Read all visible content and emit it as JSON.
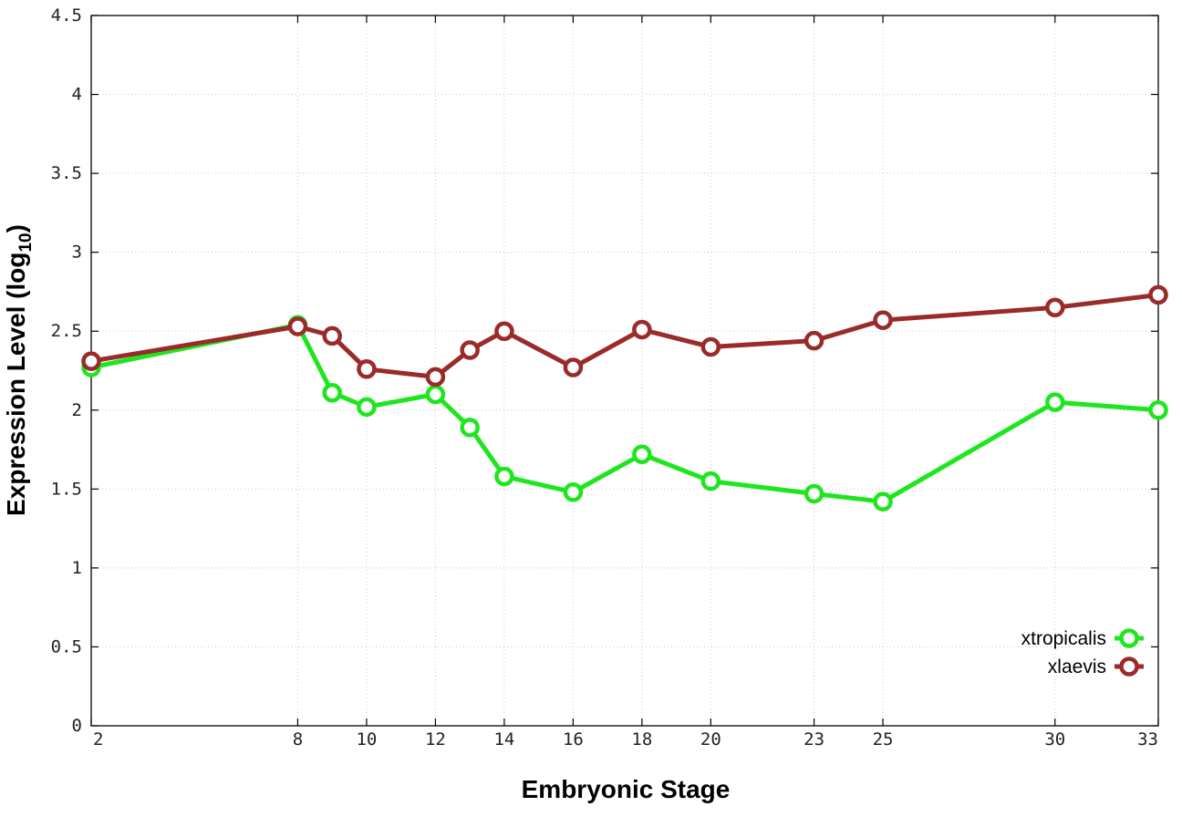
{
  "chart_data": {
    "type": "line",
    "xlabel": "Embryonic Stage",
    "ylabel": "Expression Level (log",
    "ylabel_subscript": "10",
    "ylabel_close": ")",
    "x": [
      2,
      8,
      9,
      10,
      12,
      13,
      14,
      16,
      18,
      20,
      23,
      25,
      30,
      33
    ],
    "xticks": [
      2,
      8,
      10,
      12,
      14,
      16,
      18,
      20,
      23,
      25,
      30,
      33
    ],
    "xlim": [
      2,
      33
    ],
    "ylim": [
      0,
      4.5
    ],
    "yticks": [
      "0",
      "0.5",
      "1",
      "1.5",
      "2",
      "2.5",
      "3",
      "3.5",
      "4",
      "4.5"
    ],
    "grid": true,
    "legend_position": "bottom-right",
    "series": [
      {
        "name": "xtropicalis",
        "color": "#1ee61e",
        "values": [
          2.27,
          2.54,
          2.11,
          2.02,
          2.1,
          1.89,
          1.58,
          1.48,
          1.72,
          1.55,
          1.47,
          1.42,
          2.05,
          2.0
        ]
      },
      {
        "name": "xlaevis",
        "color": "#9b2a2a",
        "values": [
          2.31,
          2.53,
          2.47,
          2.26,
          2.21,
          2.38,
          2.5,
          2.27,
          2.51,
          2.4,
          2.44,
          2.57,
          2.65,
          2.73
        ]
      }
    ]
  }
}
